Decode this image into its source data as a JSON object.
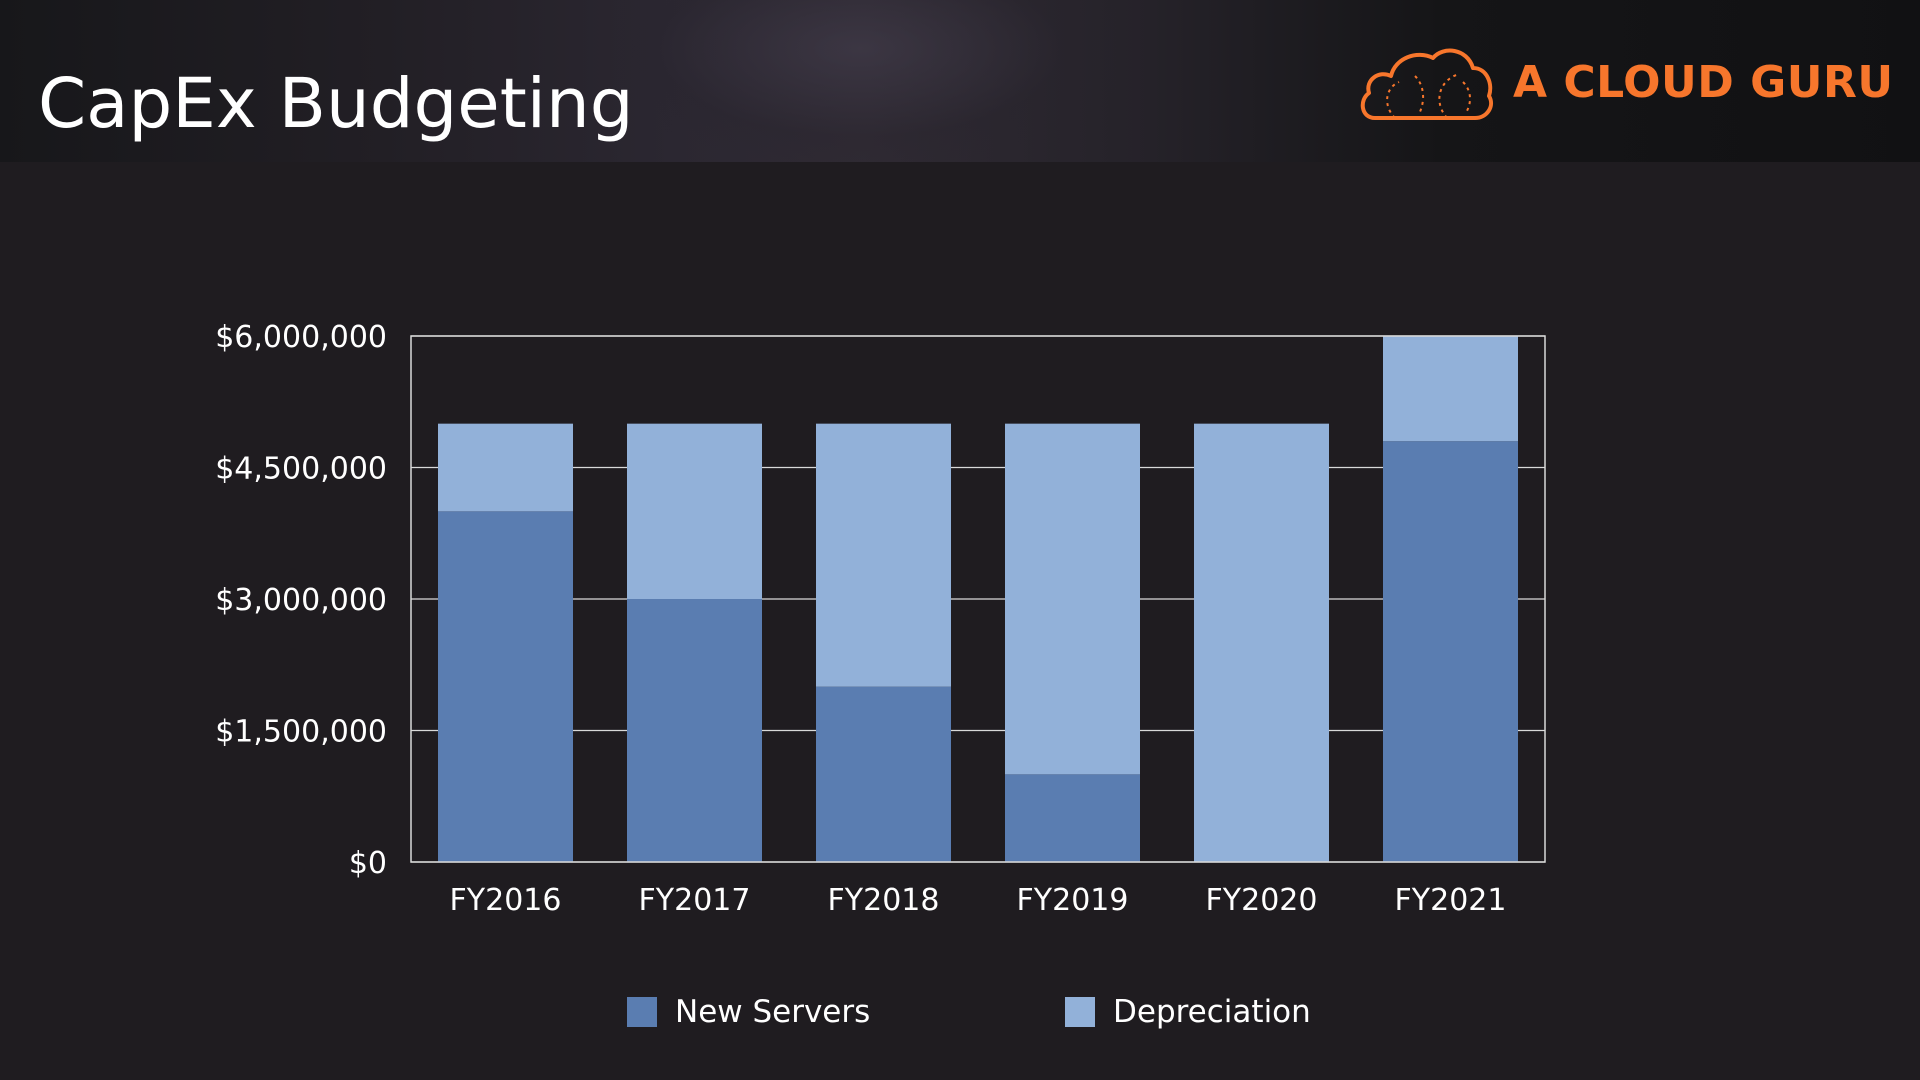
{
  "slide": {
    "title": "CapEx Budgeting",
    "brand": {
      "name": "A CLOUD GURU",
      "icon": "cloud-logo-icon",
      "color": "#f7762c"
    }
  },
  "chart_data": {
    "type": "bar",
    "stacked": true,
    "title": "",
    "xlabel": "",
    "ylabel": "",
    "categories": [
      "FY2016",
      "FY2017",
      "FY2018",
      "FY2019",
      "FY2020",
      "FY2021"
    ],
    "series": [
      {
        "name": "New Servers",
        "color": "#5a7db1",
        "values": [
          4000000,
          3000000,
          2000000,
          1000000,
          0,
          4800000
        ]
      },
      {
        "name": "Depreciation",
        "color": "#92b1d9",
        "values": [
          1000000,
          2000000,
          3000000,
          4000000,
          5000000,
          1200000
        ]
      }
    ],
    "ylim": [
      0,
      6000000
    ],
    "yticks": [
      {
        "value": 0,
        "label": "$0"
      },
      {
        "value": 1500000,
        "label": "$1,500,000"
      },
      {
        "value": 3000000,
        "label": "$3,000,000"
      },
      {
        "value": 4500000,
        "label": "$4,500,000"
      },
      {
        "value": 6000000,
        "label": "$6,000,000"
      }
    ],
    "grid": true,
    "legend_position": "bottom"
  }
}
